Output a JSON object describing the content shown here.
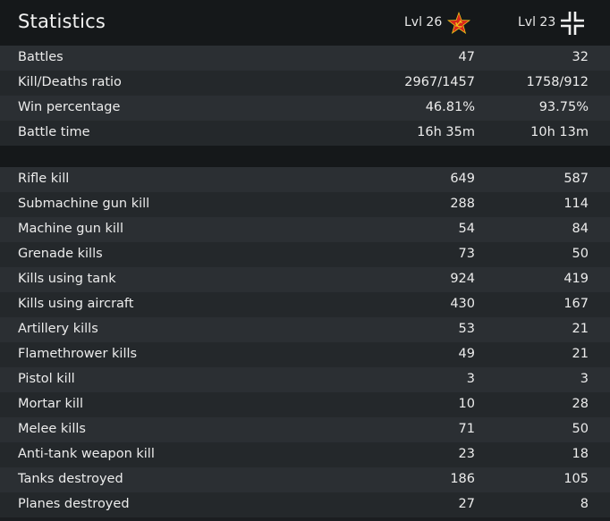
{
  "header": {
    "title": "Statistics",
    "team_a_level": "Lvl 26",
    "team_b_level": "Lvl 23",
    "team_a_icon": "soviet-star-icon",
    "team_b_icon": "balkenkreuz-icon"
  },
  "summary_rows": [
    {
      "label": "Battles",
      "a": "47",
      "b": "32"
    },
    {
      "label": "Kill/Deaths ratio",
      "a": "2967/1457",
      "b": "1758/912"
    },
    {
      "label": "Win percentage",
      "a": "46.81%",
      "b": "93.75%"
    },
    {
      "label": "Battle time",
      "a": "16h 35m",
      "b": "10h 13m"
    }
  ],
  "kill_rows": [
    {
      "label": "Rifle kill",
      "a": "649",
      "b": "587"
    },
    {
      "label": "Submachine gun kill",
      "a": "288",
      "b": "114"
    },
    {
      "label": "Machine gun kill",
      "a": "54",
      "b": "84"
    },
    {
      "label": "Grenade kills",
      "a": "73",
      "b": "50"
    },
    {
      "label": "Kills using tank",
      "a": "924",
      "b": "419"
    },
    {
      "label": "Kills using aircraft",
      "a": "430",
      "b": "167"
    },
    {
      "label": "Artillery kills",
      "a": "53",
      "b": "21"
    },
    {
      "label": "Flamethrower kills",
      "a": "49",
      "b": "21"
    },
    {
      "label": "Pistol kill",
      "a": "3",
      "b": "3"
    },
    {
      "label": "Mortar kill",
      "a": "10",
      "b": "28"
    },
    {
      "label": "Melee kills",
      "a": "71",
      "b": "50"
    },
    {
      "label": "Anti-tank weapon kill",
      "a": "23",
      "b": "18"
    },
    {
      "label": "Tanks destroyed",
      "a": "186",
      "b": "105"
    },
    {
      "label": "Planes destroyed",
      "a": "27",
      "b": "8"
    }
  ],
  "colors": {
    "star_red": "#d8261c",
    "star_gold": "#f0c419"
  }
}
